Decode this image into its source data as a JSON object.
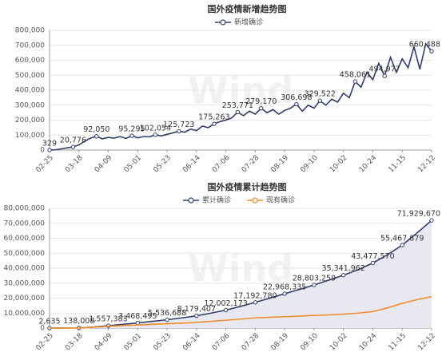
{
  "chart_data": [
    {
      "type": "line",
      "title": "国外疫情新增趋势图",
      "watermark": "Wind",
      "categories": [
        "02-25",
        null,
        null,
        null,
        null,
        "03-18",
        null,
        null,
        null,
        null,
        "04-09",
        null,
        null,
        null,
        null,
        "05-01",
        null,
        null,
        null,
        null,
        "05-23",
        null,
        null,
        null,
        null,
        "06-14",
        null,
        null,
        null,
        null,
        "07-06",
        null,
        null,
        null,
        null,
        "07-28",
        null,
        null,
        null,
        null,
        "08-19",
        null,
        null,
        null,
        null,
        "09-10",
        null,
        null,
        null,
        null,
        "10-02",
        null,
        null,
        null,
        null,
        "10-24",
        null,
        null,
        null,
        null,
        "11-15",
        null,
        null,
        null,
        null,
        "12-12"
      ],
      "series": [
        {
          "name": "新增确诊",
          "color": "#2f3d6b",
          "values": [
            329,
            2000,
            8000,
            15000,
            20776,
            35000,
            60000,
            80000,
            92050,
            75000,
            85000,
            80000,
            90000,
            78000,
            95295,
            82000,
            90000,
            88000,
            102054,
            95000,
            105000,
            115000,
            125723,
            120000,
            140000,
            130000,
            160000,
            150000,
            175263,
            190000,
            200000,
            215000,
            253771,
            230000,
            260000,
            240000,
            279170,
            250000,
            270000,
            240000,
            265000,
            280000,
            306698,
            260000,
            300000,
            280000,
            329522,
            300000,
            340000,
            320000,
            380000,
            350000,
            458061,
            420000,
            520000,
            470000,
            580000,
            494977,
            620000,
            520000,
            610000,
            550000,
            690000,
            540000,
            710000,
            660488
          ],
          "value_labels": [
            "329",
            null,
            null,
            null,
            "20,776",
            null,
            null,
            null,
            "92,050",
            null,
            null,
            null,
            null,
            null,
            "95,295",
            null,
            null,
            null,
            "102,054",
            null,
            null,
            null,
            "125,723",
            null,
            null,
            null,
            null,
            null,
            "175,263",
            null,
            null,
            null,
            "253,771",
            null,
            null,
            null,
            "279,170",
            null,
            null,
            null,
            null,
            null,
            "306,698",
            null,
            null,
            null,
            "329,522",
            null,
            null,
            null,
            null,
            null,
            "458,061",
            null,
            null,
            null,
            null,
            "494,977",
            null,
            null,
            null,
            null,
            null,
            null,
            null,
            "660,488"
          ]
        }
      ],
      "ylim": [
        0,
        800000
      ],
      "yticks": [
        0,
        {
          "value": 100000,
          "label": "100,000"
        },
        {
          "value": 200000,
          "label": "200,000"
        },
        {
          "value": 300000,
          "label": "300,000"
        },
        {
          "value": 400000,
          "label": "400,000"
        },
        {
          "value": 500000,
          "label": "500,000"
        },
        {
          "value": 600000,
          "label": "600,000"
        },
        {
          "value": 700000,
          "label": "700,000"
        },
        {
          "value": 800000,
          "label": "800,000"
        }
      ],
      "grid": true
    },
    {
      "type": "line",
      "title": "国外疫情累计趋势图",
      "watermark": "Wind",
      "categories": [
        "02-25",
        null,
        "03-18",
        null,
        "04-09",
        null,
        "05-01",
        null,
        "05-23",
        null,
        "06-14",
        null,
        "07-06",
        null,
        "07-28",
        null,
        "08-19",
        null,
        "09-10",
        null,
        "10-02",
        null,
        "10-24",
        null,
        "11-15",
        null,
        "12-12"
      ],
      "series": [
        {
          "name": "累计确诊",
          "color": "#2f3d6b",
          "area_color": "#e8e9f0",
          "values": [
            2635,
            20000,
            138008,
            700000,
            1557383,
            2500000,
            3468495,
            4500000,
            5536688,
            6800000,
            8179407,
            10000000,
            12002173,
            14500000,
            17192780,
            20000000,
            22968335,
            25800000,
            28803259,
            32000000,
            35341962,
            39000000,
            43477570,
            49000000,
            55467879,
            63500000,
            71929670
          ],
          "value_labels": [
            "2,635",
            null,
            "138,008",
            null,
            "1,557,383",
            null,
            "3,468,495",
            null,
            "5,536,688",
            null,
            "8,179,407",
            null,
            "12,002,173",
            null,
            "17,192,780",
            null,
            "22,968,335",
            null,
            "28,803,259",
            null,
            "35,341,962",
            null,
            "43,477,570",
            null,
            "55,467,879",
            null,
            "71,929,670"
          ]
        },
        {
          "name": "现有确诊",
          "color": "#f28c28",
          "values": [
            2000,
            15000,
            110000,
            550000,
            1200000,
            1700000,
            2100000,
            2500000,
            2900000,
            3300000,
            3800000,
            4500000,
            5200000,
            6000000,
            6800000,
            7200000,
            7600000,
            8000000,
            8400000,
            8800000,
            9300000,
            10000000,
            11000000,
            13500000,
            16500000,
            19000000,
            21000000
          ]
        }
      ],
      "ylim": [
        0,
        80000000
      ],
      "yticks": [
        0,
        {
          "value": 10000000,
          "label": "10,000,000"
        },
        {
          "value": 20000000,
          "label": "20,000,000"
        },
        {
          "value": 30000000,
          "label": "30,000,000"
        },
        {
          "value": 40000000,
          "label": "40,000,000"
        },
        {
          "value": 50000000,
          "label": "50,000,000"
        },
        {
          "value": 60000000,
          "label": "60,000,000"
        },
        {
          "value": 70000000,
          "label": "70,000,000"
        },
        {
          "value": 80000000,
          "label": "80,000,000"
        }
      ],
      "grid": true
    }
  ]
}
